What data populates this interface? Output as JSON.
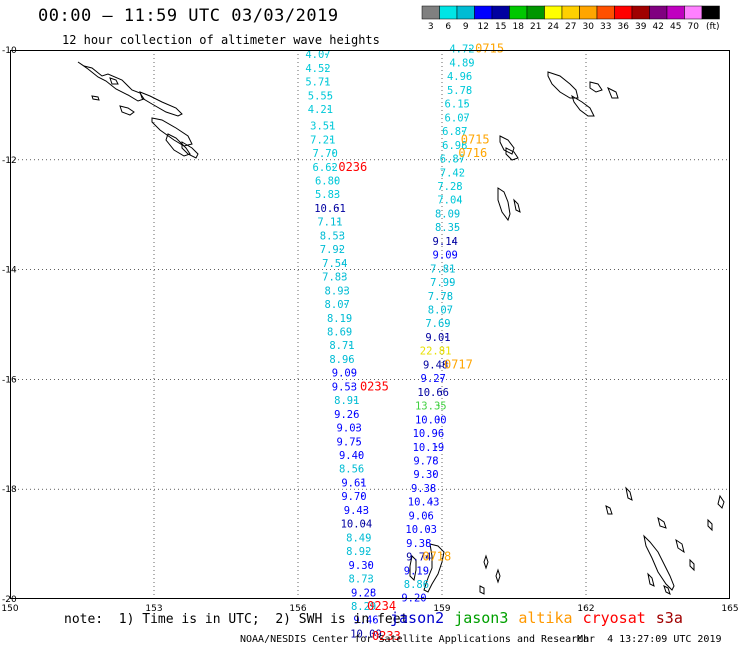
{
  "header": {
    "title": "00:00 – 11:59 UTC 03/03/2019",
    "subtitle": "12 hour collection of altimeter wave heights"
  },
  "colorbar": {
    "ticks": [
      "3",
      "6",
      "9",
      "12",
      "15",
      "18",
      "21",
      "24",
      "27",
      "30",
      "33",
      "36",
      "39",
      "42",
      "45",
      "70",
      "(ft)"
    ],
    "colors": [
      "#808080",
      "#00e5e5",
      "#00bcd4",
      "#0000ff",
      "#0000a0",
      "#00c800",
      "#009600",
      "#ffff00",
      "#ffd000",
      "#ffa500",
      "#ff5000",
      "#ff0000",
      "#a00000",
      "#800080",
      "#c000c0",
      "#ff80ff",
      "#000000"
    ]
  },
  "chart_data": {
    "type": "scatter",
    "title": "00:00 – 11:59 UTC 03/03/2019",
    "subtitle": "12 hour collection of altimeter wave heights",
    "xlim": [
      150,
      165
    ],
    "ylim": [
      -20,
      -10
    ],
    "x_ticks": [
      "150",
      "153",
      "156",
      "159",
      "162",
      "165"
    ],
    "y_ticks": [
      "-10",
      "-12",
      "-14",
      "-16",
      "-18",
      "-20"
    ],
    "series": [
      {
        "name": "jason2",
        "color": "#0000cc",
        "points": [
          {
            "lon": 156.0,
            "lat": -10.15,
            "swh": "4.07",
            "c": "#00c8d8"
          },
          {
            "lon": 156.0,
            "lat": -10.4,
            "swh": "4.52",
            "c": "#00c8d8"
          },
          {
            "lon": 156.0,
            "lat": -10.65,
            "swh": "5.71",
            "c": "#00c8d8"
          },
          {
            "lon": 156.05,
            "lat": -10.9,
            "swh": "5.55",
            "c": "#00c8d8"
          },
          {
            "lon": 156.05,
            "lat": -11.15,
            "swh": "4.21",
            "c": "#00c8d8"
          },
          {
            "lon": 156.1,
            "lat": -11.45,
            "swh": "3.51",
            "c": "#00c8d8"
          },
          {
            "lon": 156.1,
            "lat": -11.7,
            "swh": "7.21",
            "c": "#00c8d8"
          },
          {
            "lon": 156.15,
            "lat": -11.95,
            "swh": "7.70",
            "c": "#00c8d8"
          },
          {
            "lon": 156.15,
            "lat": -12.2,
            "swh": "6.62",
            "c": "#00c8d8"
          },
          {
            "lon": 156.2,
            "lat": -12.45,
            "swh": "6.80",
            "c": "#00c8d8"
          },
          {
            "lon": 156.2,
            "lat": -12.7,
            "swh": "5.83",
            "c": "#00c8d8"
          },
          {
            "lon": 156.25,
            "lat": -12.95,
            "swh": "10.61",
            "c": "#0000a0"
          },
          {
            "lon": 156.25,
            "lat": -13.2,
            "swh": "7.11",
            "c": "#00bcd4"
          },
          {
            "lon": 156.3,
            "lat": -13.45,
            "swh": "8.53",
            "c": "#00bcd4"
          },
          {
            "lon": 156.3,
            "lat": -13.7,
            "swh": "7.92",
            "c": "#00bcd4"
          },
          {
            "lon": 156.35,
            "lat": -13.95,
            "swh": "7.54",
            "c": "#00bcd4"
          },
          {
            "lon": 156.35,
            "lat": -14.2,
            "swh": "7.83",
            "c": "#00bcd4"
          },
          {
            "lon": 156.4,
            "lat": -14.45,
            "swh": "8.93",
            "c": "#00bcd4"
          },
          {
            "lon": 156.4,
            "lat": -14.7,
            "swh": "8.07",
            "c": "#00bcd4"
          },
          {
            "lon": 156.45,
            "lat": -14.95,
            "swh": "8.19",
            "c": "#00bcd4"
          },
          {
            "lon": 156.45,
            "lat": -15.2,
            "swh": "8.69",
            "c": "#00bcd4"
          },
          {
            "lon": 156.5,
            "lat": -15.45,
            "swh": "8.71",
            "c": "#00bcd4"
          },
          {
            "lon": 156.5,
            "lat": -15.7,
            "swh": "8.96",
            "c": "#00bcd4"
          },
          {
            "lon": 156.55,
            "lat": -15.95,
            "swh": "9.09",
            "c": "#0000ff"
          },
          {
            "lon": 156.55,
            "lat": -16.2,
            "swh": "9.53",
            "c": "#0000ff"
          },
          {
            "lon": 156.6,
            "lat": -16.45,
            "swh": "8.91",
            "c": "#00bcd4"
          },
          {
            "lon": 156.6,
            "lat": -16.7,
            "swh": "9.26",
            "c": "#0000ff"
          },
          {
            "lon": 156.65,
            "lat": -16.95,
            "swh": "9.03",
            "c": "#0000ff"
          },
          {
            "lon": 156.65,
            "lat": -17.2,
            "swh": "9.75",
            "c": "#0000ff"
          },
          {
            "lon": 156.7,
            "lat": -17.45,
            "swh": "9.40",
            "c": "#0000ff"
          },
          {
            "lon": 156.7,
            "lat": -17.7,
            "swh": "8.56",
            "c": "#00bcd4"
          },
          {
            "lon": 156.75,
            "lat": -17.95,
            "swh": "9.61",
            "c": "#0000ff"
          },
          {
            "lon": 156.75,
            "lat": -18.2,
            "swh": "9.70",
            "c": "#0000ff"
          },
          {
            "lon": 156.8,
            "lat": -18.45,
            "swh": "9.43",
            "c": "#0000ff"
          },
          {
            "lon": 156.8,
            "lat": -18.7,
            "swh": "10.04",
            "c": "#0000a0"
          },
          {
            "lon": 156.85,
            "lat": -18.95,
            "swh": "8.49",
            "c": "#00bcd4"
          },
          {
            "lon": 156.85,
            "lat": -19.2,
            "swh": "8.92",
            "c": "#00bcd4"
          },
          {
            "lon": 156.9,
            "lat": -19.45,
            "swh": "9.30",
            "c": "#0000ff"
          },
          {
            "lon": 156.9,
            "lat": -19.7,
            "swh": "8.73",
            "c": "#00bcd4"
          },
          {
            "lon": 156.95,
            "lat": -19.95,
            "swh": "9.28",
            "c": "#0000ff"
          },
          {
            "lon": 156.95,
            "lat": -20.2,
            "swh": "8.29",
            "c": "#00bcd4"
          },
          {
            "lon": 157.0,
            "lat": -20.45,
            "swh": "9.46",
            "c": "#0000ff"
          },
          {
            "lon": 157.0,
            "lat": -20.7,
            "swh": "10.09",
            "c": "#0000a0"
          }
        ]
      },
      {
        "name": "jason2",
        "color": "#0000cc",
        "points": [
          {
            "lon": 159.0,
            "lat": -10.05,
            "swh": "4.72",
            "c": "#00c8d8"
          },
          {
            "lon": 159.0,
            "lat": -10.3,
            "swh": "4.89",
            "c": "#00c8d8"
          },
          {
            "lon": 158.95,
            "lat": -10.55,
            "swh": "4.96",
            "c": "#00c8d8"
          },
          {
            "lon": 158.95,
            "lat": -10.8,
            "swh": "5.78",
            "c": "#00c8d8"
          },
          {
            "lon": 158.9,
            "lat": -11.05,
            "swh": "6.15",
            "c": "#00c8d8"
          },
          {
            "lon": 158.9,
            "lat": -11.3,
            "swh": "6.07",
            "c": "#00c8d8"
          },
          {
            "lon": 158.85,
            "lat": -11.55,
            "swh": "6.87",
            "c": "#00c8d8"
          },
          {
            "lon": 158.85,
            "lat": -11.8,
            "swh": "6.98",
            "c": "#00c8d8"
          },
          {
            "lon": 158.8,
            "lat": -12.05,
            "swh": "6.87",
            "c": "#00c8d8"
          },
          {
            "lon": 158.8,
            "lat": -12.3,
            "swh": "7.42",
            "c": "#00c8d8"
          },
          {
            "lon": 158.75,
            "lat": -12.55,
            "swh": "7.28",
            "c": "#00c8d8"
          },
          {
            "lon": 158.75,
            "lat": -12.8,
            "swh": "7.04",
            "c": "#00c8d8"
          },
          {
            "lon": 158.7,
            "lat": -13.05,
            "swh": "8.09",
            "c": "#00bcd4"
          },
          {
            "lon": 158.7,
            "lat": -13.3,
            "swh": "8.35",
            "c": "#00bcd4"
          },
          {
            "lon": 158.65,
            "lat": -13.55,
            "swh": "9.14",
            "c": "#0000a0"
          },
          {
            "lon": 158.65,
            "lat": -13.8,
            "swh": "9.09",
            "c": "#0000ff"
          },
          {
            "lon": 158.6,
            "lat": -14.05,
            "swh": "7.81",
            "c": "#00bcd4"
          },
          {
            "lon": 158.6,
            "lat": -14.3,
            "swh": "7.99",
            "c": "#00bcd4"
          },
          {
            "lon": 158.55,
            "lat": -14.55,
            "swh": "7.78",
            "c": "#00bcd4"
          },
          {
            "lon": 158.55,
            "lat": -14.8,
            "swh": "8.07",
            "c": "#00bcd4"
          },
          {
            "lon": 158.5,
            "lat": -15.05,
            "swh": "7.69",
            "c": "#00bcd4"
          },
          {
            "lon": 158.5,
            "lat": -15.3,
            "swh": "9.01",
            "c": "#0000a0"
          },
          {
            "lon": 158.45,
            "lat": -15.55,
            "swh": "22.81",
            "c": "#e8e000"
          },
          {
            "lon": 158.45,
            "lat": -15.8,
            "swh": "9.48",
            "c": "#0000a0"
          },
          {
            "lon": 158.4,
            "lat": -16.05,
            "swh": "9.27",
            "c": "#0000ff"
          },
          {
            "lon": 158.4,
            "lat": -16.3,
            "swh": "10.66",
            "c": "#0000a0"
          },
          {
            "lon": 158.35,
            "lat": -16.55,
            "swh": "13.35",
            "c": "#40d040"
          },
          {
            "lon": 158.35,
            "lat": -16.8,
            "swh": "10.00",
            "c": "#0000ff"
          },
          {
            "lon": 158.3,
            "lat": -17.05,
            "swh": "10.96",
            "c": "#0000ff"
          },
          {
            "lon": 158.3,
            "lat": -17.3,
            "swh": "10.19",
            "c": "#0000ff"
          },
          {
            "lon": 158.25,
            "lat": -17.55,
            "swh": "9.78",
            "c": "#0000ff"
          },
          {
            "lon": 158.25,
            "lat": -17.8,
            "swh": "9.30",
            "c": "#0000ff"
          },
          {
            "lon": 158.2,
            "lat": -18.05,
            "swh": "9.38",
            "c": "#0000ff"
          },
          {
            "lon": 158.2,
            "lat": -18.3,
            "swh": "10.43",
            "c": "#0000ff"
          },
          {
            "lon": 158.15,
            "lat": -18.55,
            "swh": "9.06",
            "c": "#0000ff"
          },
          {
            "lon": 158.15,
            "lat": -18.8,
            "swh": "10.03",
            "c": "#0000ff"
          },
          {
            "lon": 158.1,
            "lat": -19.05,
            "swh": "9.38",
            "c": "#0000ff"
          },
          {
            "lon": 158.1,
            "lat": -19.3,
            "swh": "9.74",
            "c": "#0000a0"
          },
          {
            "lon": 158.05,
            "lat": -19.55,
            "swh": "9.19",
            "c": "#0000ff"
          },
          {
            "lon": 158.05,
            "lat": -19.8,
            "swh": "8.86",
            "c": "#00bcd4"
          },
          {
            "lon": 158.0,
            "lat": -20.05,
            "swh": "9.20",
            "c": "#0000ff"
          }
        ]
      }
    ],
    "time_tags": [
      {
        "text": "0715",
        "lon": 159.7,
        "lat": -10.05,
        "color": "#ffa500"
      },
      {
        "text": "0715",
        "lon": 159.4,
        "lat": -11.7,
        "color": "#ffa500"
      },
      {
        "text": "0716",
        "lon": 159.35,
        "lat": -11.95,
        "color": "#ffa500"
      },
      {
        "text": "0236",
        "lon": 156.85,
        "lat": -12.2,
        "color": "#ff0000"
      },
      {
        "text": "0717",
        "lon": 159.05,
        "lat": -15.8,
        "color": "#ffa500"
      },
      {
        "text": "0235",
        "lon": 157.3,
        "lat": -16.2,
        "color": "#ff0000"
      },
      {
        "text": "0718",
        "lon": 158.6,
        "lat": -19.3,
        "color": "#ffa500"
      },
      {
        "text": "0234",
        "lon": 157.45,
        "lat": -20.2,
        "color": "#ff0000"
      },
      {
        "text": "0233",
        "lon": 157.55,
        "lat": -20.75,
        "color": "#ff0000"
      }
    ]
  },
  "footer": {
    "note": "note:  1) Time is in UTC;  2) SWH is in feet",
    "satellites": [
      {
        "name": "jason2",
        "color": "#0000cc"
      },
      {
        "name": "jason3",
        "color": "#00a000"
      },
      {
        "name": "altika",
        "color": "#ff9900"
      },
      {
        "name": "cryosat",
        "color": "#ff0000"
      },
      {
        "name": "s3a",
        "color": "#a00000"
      }
    ],
    "credit": "NOAA/NESDIS Center for Satellite Applications and Research",
    "timestamp": "Mar  4 13:27:09 UTC 2019"
  }
}
